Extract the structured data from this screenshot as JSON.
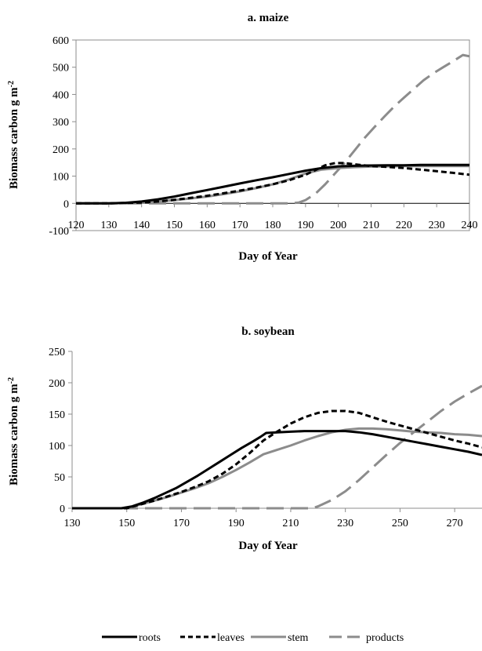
{
  "legend": [
    {
      "name": "roots",
      "color": "#000000",
      "dash": "solid"
    },
    {
      "name": "leaves",
      "color": "#000000",
      "dash": "short"
    },
    {
      "name": "stem",
      "color": "#8c8c8c",
      "dash": "solid"
    },
    {
      "name": "products",
      "color": "#8c8c8c",
      "dash": "long"
    }
  ],
  "chart_data": [
    {
      "type": "line",
      "title": "a. maize",
      "xlabel": "Day of Year",
      "ylabel": "Biomass carbon g m-2",
      "ylabel_main": "Biomass carbon g m",
      "ylabel_sup": "-2",
      "xlim": [
        120,
        240
      ],
      "ylim": [
        -100,
        600
      ],
      "xticks": [
        120,
        130,
        140,
        150,
        160,
        170,
        180,
        190,
        200,
        210,
        220,
        230,
        240
      ],
      "yticks": [
        -100,
        0,
        100,
        200,
        300,
        400,
        500,
        600
      ],
      "grid": false,
      "series": [
        {
          "name": "roots",
          "x": [
            120,
            130,
            135,
            140,
            145,
            150,
            155,
            160,
            165,
            170,
            175,
            180,
            185,
            190,
            195,
            200,
            205,
            210,
            215,
            220,
            225,
            230,
            235,
            240
          ],
          "y": [
            0,
            0,
            2,
            7,
            15,
            25,
            37,
            49,
            61,
            73,
            85,
            96,
            108,
            120,
            130,
            136,
            138,
            139,
            140,
            140,
            141,
            141,
            141,
            141
          ]
        },
        {
          "name": "leaves",
          "x": [
            120,
            130,
            140,
            145,
            150,
            155,
            160,
            165,
            170,
            175,
            180,
            185,
            190,
            193,
            196,
            199,
            202,
            205,
            210,
            215,
            220,
            225,
            230,
            235,
            240
          ],
          "y": [
            0,
            0,
            3,
            7,
            13,
            20,
            28,
            37,
            47,
            58,
            70,
            85,
            105,
            122,
            140,
            148,
            148,
            143,
            137,
            134,
            130,
            124,
            118,
            112,
            105
          ]
        },
        {
          "name": "stem",
          "x": [
            120,
            130,
            140,
            145,
            150,
            155,
            160,
            165,
            170,
            175,
            180,
            185,
            190,
            195,
            200,
            205,
            210,
            215,
            220,
            225,
            230,
            235,
            240
          ],
          "y": [
            0,
            0,
            3,
            7,
            12,
            18,
            25,
            34,
            44,
            56,
            70,
            88,
            110,
            124,
            130,
            133,
            135,
            136,
            137,
            137,
            137,
            137,
            137
          ]
        },
        {
          "name": "products",
          "x": [
            120,
            150,
            185,
            188,
            190,
            193,
            196,
            199,
            202,
            205,
            208,
            211,
            214,
            217,
            220,
            223,
            226,
            229,
            232,
            235,
            238,
            240
          ],
          "y": [
            0,
            0,
            0,
            3,
            12,
            35,
            70,
            110,
            150,
            195,
            240,
            280,
            318,
            355,
            388,
            420,
            452,
            478,
            500,
            522,
            545,
            540
          ]
        }
      ]
    },
    {
      "type": "line",
      "title": "b. soybean",
      "xlabel": "Day of Year",
      "ylabel": "Biomass carbon g m-2",
      "ylabel_main": "Biomass carbon g m",
      "ylabel_sup": "-2",
      "xlim": [
        130,
        280
      ],
      "ylim": [
        0,
        250
      ],
      "xticks": [
        130,
        150,
        170,
        190,
        210,
        230,
        250,
        270
      ],
      "yticks": [
        0,
        50,
        100,
        150,
        200,
        250
      ],
      "grid": false,
      "series": [
        {
          "name": "roots",
          "x": [
            130,
            148,
            152,
            156,
            160,
            164,
            168,
            172,
            176,
            180,
            184,
            188,
            192,
            196,
            199,
            201,
            205,
            210,
            215,
            220,
            225,
            230,
            235,
            240,
            245,
            250,
            255,
            260,
            265,
            270,
            275,
            280
          ],
          "y": [
            0,
            0,
            3,
            9,
            16,
            24,
            32,
            42,
            52,
            63,
            74,
            85,
            96,
            106,
            114,
            120,
            121,
            122,
            123,
            123,
            123,
            123,
            121,
            118,
            114,
            110,
            106,
            102,
            98,
            94,
            90,
            85
          ]
        },
        {
          "name": "leaves",
          "x": [
            130,
            150,
            155,
            160,
            165,
            170,
            175,
            180,
            185,
            190,
            195,
            200,
            205,
            210,
            215,
            220,
            225,
            230,
            235,
            240,
            245,
            250,
            255,
            260,
            265,
            270,
            275,
            280
          ],
          "y": [
            0,
            0,
            6,
            12,
            19,
            26,
            34,
            43,
            55,
            70,
            88,
            108,
            122,
            135,
            145,
            152,
            155,
            155,
            152,
            145,
            138,
            132,
            126,
            120,
            114,
            108,
            103,
            97
          ]
        },
        {
          "name": "stem",
          "x": [
            130,
            150,
            155,
            160,
            165,
            170,
            175,
            180,
            185,
            190,
            195,
            200,
            205,
            210,
            215,
            220,
            225,
            230,
            235,
            240,
            245,
            250,
            255,
            260,
            265,
            270,
            275,
            280
          ],
          "y": [
            0,
            0,
            6,
            12,
            18,
            25,
            32,
            40,
            50,
            61,
            73,
            86,
            93,
            100,
            108,
            115,
            121,
            125,
            127,
            127,
            126,
            124,
            122,
            121,
            120,
            118,
            117,
            115
          ]
        },
        {
          "name": "products",
          "x": [
            130,
            150,
            180,
            200,
            218,
            220,
            225,
            230,
            235,
            240,
            245,
            250,
            255,
            260,
            265,
            270,
            275,
            280
          ],
          "y": [
            0,
            0,
            0,
            0,
            0,
            3,
            13,
            27,
            45,
            65,
            85,
            104,
            121,
            138,
            155,
            170,
            183,
            195
          ]
        }
      ]
    }
  ]
}
